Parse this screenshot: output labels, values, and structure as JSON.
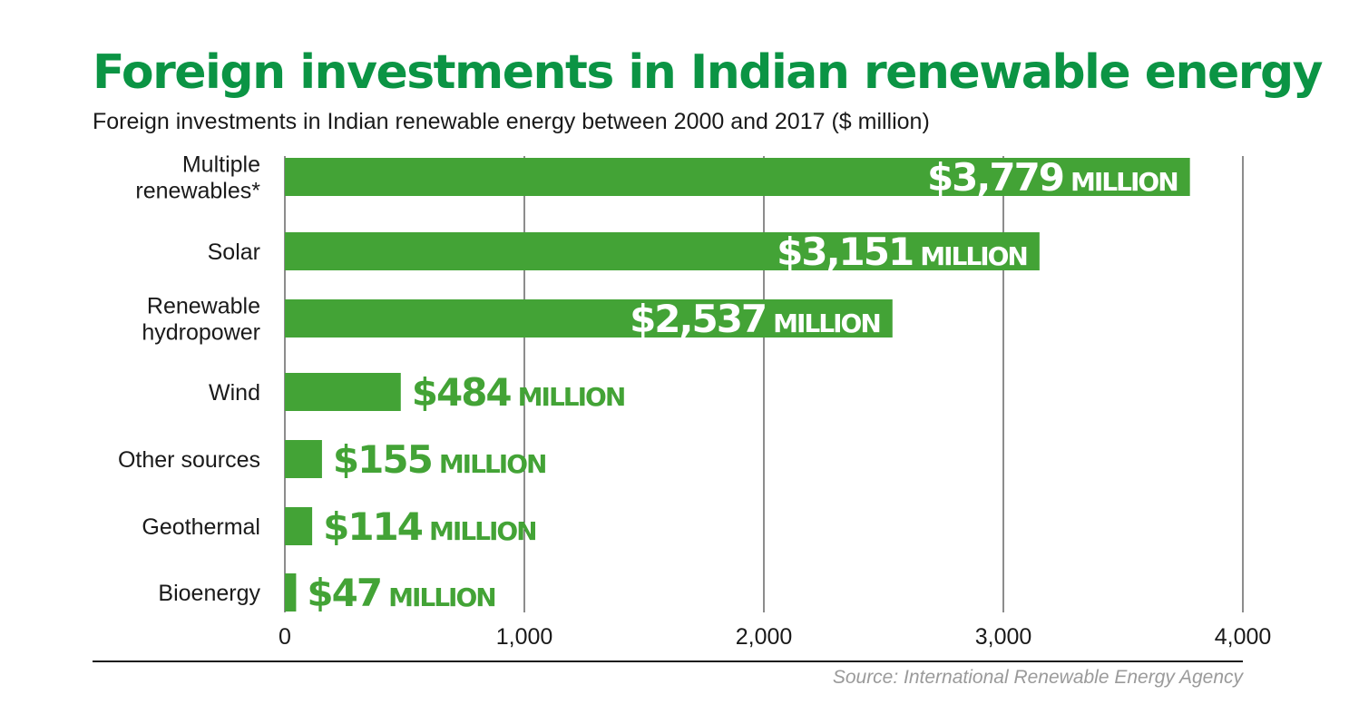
{
  "title": "Foreign investments in Indian renewable energy",
  "subtitle": "Foreign investments in Indian renewable energy between 2000 and 2017 ($ million)",
  "source": "Source: International Renewable Energy Agency",
  "colors": {
    "bar": "#43a336",
    "title": "#0b9444",
    "label_outside": "#43a336",
    "label_inside": "#ffffff"
  },
  "chart_data": {
    "type": "bar",
    "orientation": "horizontal",
    "title": "Foreign investments in Indian renewable energy",
    "subtitle": "Foreign investments in Indian renewable energy between 2000 and 2017 ($ million)",
    "categories": [
      [
        "Multiple",
        "renewables*"
      ],
      [
        "Solar"
      ],
      [
        "Renewable",
        "hydropower"
      ],
      [
        "Wind"
      ],
      [
        "Other sources"
      ],
      [
        "Geothermal"
      ],
      [
        "Bioenergy"
      ]
    ],
    "values": [
      3779,
      3151,
      2537,
      484,
      155,
      114,
      47
    ],
    "value_labels": [
      "$3,779",
      "$3,151",
      "$2,537",
      "$484",
      "$155",
      "$114",
      "$47"
    ],
    "value_unit": "MILLION",
    "xlim": [
      0,
      4000
    ],
    "xticks": [
      0,
      1000,
      2000,
      3000,
      4000
    ],
    "xtick_labels": [
      "0",
      "1,000",
      "2,000",
      "3,000",
      "4,000"
    ],
    "grid": true,
    "legend": "none"
  }
}
